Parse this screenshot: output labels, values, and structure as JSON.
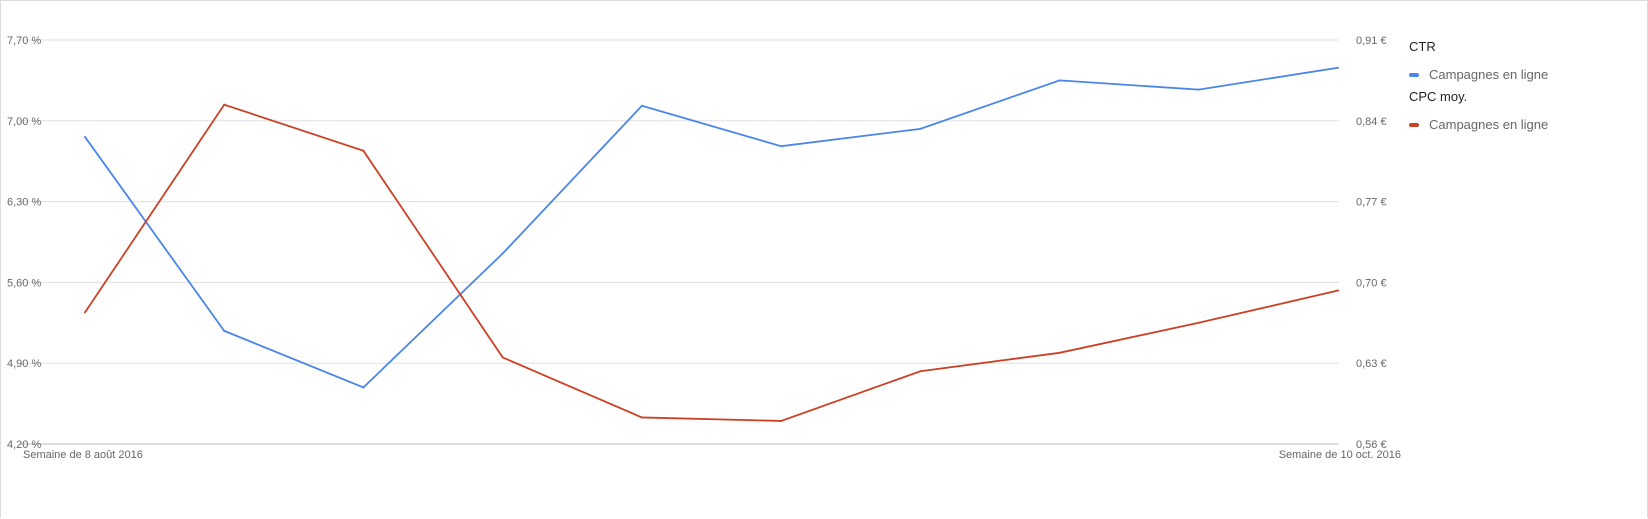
{
  "chart_data": {
    "type": "line",
    "x_labels": [
      "Semaine de 8 août 2016",
      "Semaine de 10 oct. 2016"
    ],
    "x_count": 10,
    "left_axis": {
      "ticks": [
        "7,70 %",
        "7,00 %",
        "6,30 %",
        "5,60 %",
        "4,90 %",
        "4,20 %"
      ],
      "range": [
        4.2,
        7.7
      ],
      "unit": "%"
    },
    "right_axis": {
      "ticks": [
        "0,91 €",
        "0,84 €",
        "0,77 €",
        "0,70 €",
        "0,63 €",
        "0,56 €"
      ],
      "range": [
        0.56,
        0.91
      ],
      "unit": "€"
    },
    "grid": true,
    "legend_position": "right",
    "series": [
      {
        "group": "CTR",
        "name": "Campagnes en ligne",
        "axis": "left",
        "color": "#4a86e8",
        "values": [
          6.86,
          5.18,
          4.69,
          5.85,
          7.13,
          6.78,
          6.93,
          7.35,
          7.27,
          7.46
        ]
      },
      {
        "group": "CPC moy.",
        "name": "Campagnes en ligne",
        "axis": "right",
        "color": "#cc4125",
        "values": [
          0.674,
          0.854,
          0.814,
          0.635,
          0.583,
          0.58,
          0.623,
          0.639,
          0.665,
          0.693
        ]
      }
    ]
  }
}
